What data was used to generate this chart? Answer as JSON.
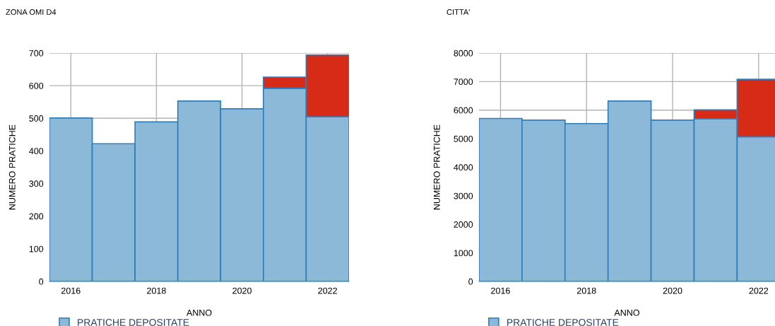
{
  "chart_data": [
    {
      "type": "bar",
      "title": "ZONA OMI D4",
      "xlabel": "ANNO",
      "ylabel": "NUMERO PRATICHE",
      "stacked": true,
      "x": [
        2016,
        2017,
        2018,
        2019,
        2020,
        2021,
        2022
      ],
      "series": [
        {
          "name": "PRATICHE DEPOSITATE",
          "color": "#8db9d9",
          "values": [
            501,
            422,
            489,
            553,
            529,
            592,
            505
          ]
        },
        {
          "color": "#d62b17",
          "values": [
            null,
            null,
            null,
            null,
            null,
            34,
            189
          ]
        }
      ],
      "xlim": [
        2015.5,
        2022.5
      ],
      "xticks": [
        2016,
        2018,
        2020,
        2022
      ],
      "ylim": [
        0,
        700
      ],
      "yticks": [
        0,
        100,
        200,
        300,
        400,
        500,
        600,
        700
      ],
      "grid": true,
      "legend": "bottom"
    },
    {
      "type": "bar",
      "title": "CITTA'",
      "xlabel": "ANNO",
      "ylabel": "NUMERO PRATICHE",
      "stacked": true,
      "x": [
        2016,
        2017,
        2018,
        2019,
        2020,
        2021,
        2022
      ],
      "series": [
        {
          "name": "PRATICHE DEPOSITATE",
          "color": "#8db9d9",
          "values": [
            5710,
            5650,
            5530,
            6320,
            5650,
            5700,
            5070
          ]
        },
        {
          "color": "#d62b17",
          "values": [
            null,
            null,
            null,
            null,
            null,
            310,
            2010
          ]
        }
      ],
      "xlim": [
        2015.5,
        2022.38
      ],
      "xticks": [
        2016,
        2018,
        2020,
        2022
      ],
      "ylim": [
        0,
        8000
      ],
      "yticks": [
        0,
        1000,
        2000,
        3000,
        4000,
        5000,
        6000,
        7000,
        8000
      ],
      "grid": true,
      "legend": "bottom"
    }
  ]
}
